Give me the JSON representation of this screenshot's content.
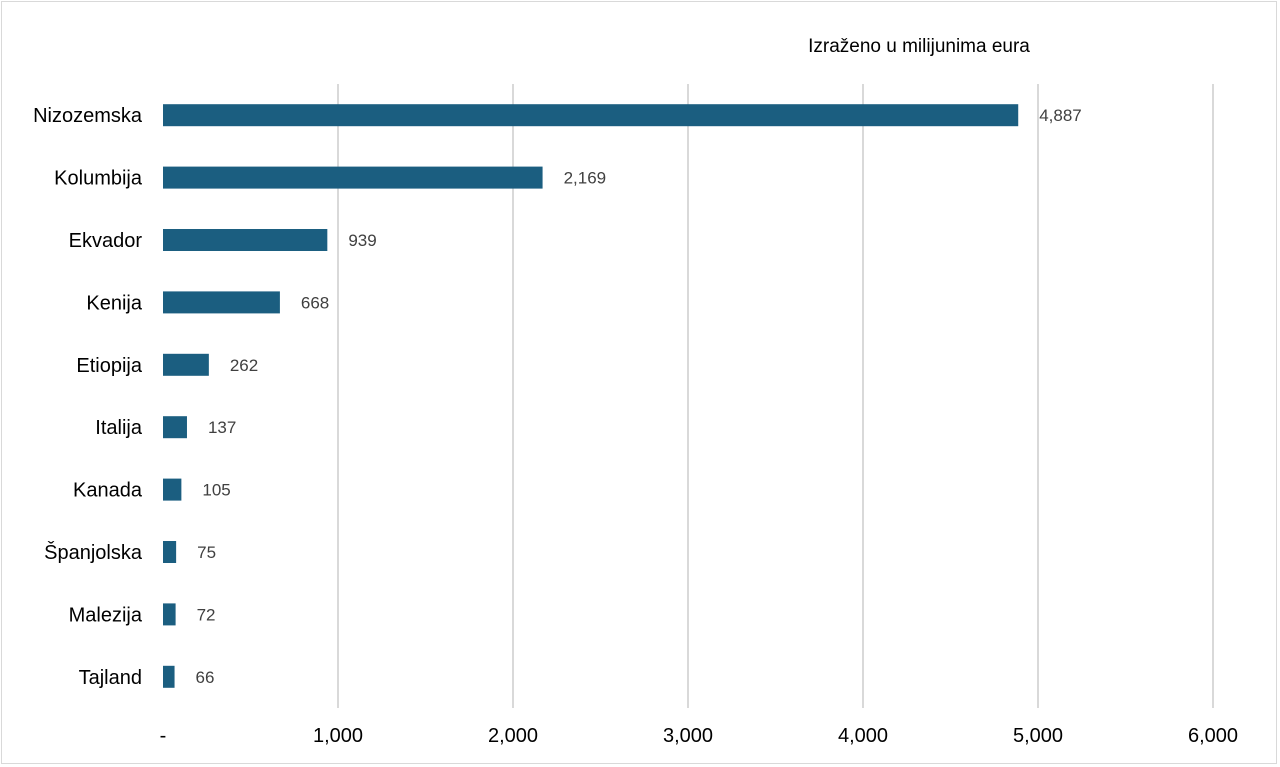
{
  "chart_data": {
    "type": "bar",
    "orientation": "horizontal",
    "unit_note": "Izraženo u milijunima eura",
    "categories": [
      "Nizozemska",
      "Kolumbija",
      "Ekvador",
      "Kenija",
      "Etiopija",
      "Italija",
      "Kanada",
      "Španjolska",
      "Malezija",
      "Tajland"
    ],
    "values": [
      4887,
      2169,
      939,
      668,
      262,
      137,
      105,
      75,
      72,
      66
    ],
    "value_labels": [
      "4,887",
      "2,169",
      "939",
      "668",
      "262",
      "137",
      "105",
      "75",
      "72",
      "66"
    ],
    "xlim": [
      0,
      6000
    ],
    "x_ticks": [
      0,
      1000,
      2000,
      3000,
      4000,
      5000,
      6000
    ],
    "x_tick_labels": [
      "-",
      "1,000",
      "2,000",
      "3,000",
      "4,000",
      "5,000",
      "6,000"
    ],
    "grid": true,
    "legend": "none",
    "bar_color": "#1b5e80",
    "grid_color": "#d9d9d9"
  }
}
